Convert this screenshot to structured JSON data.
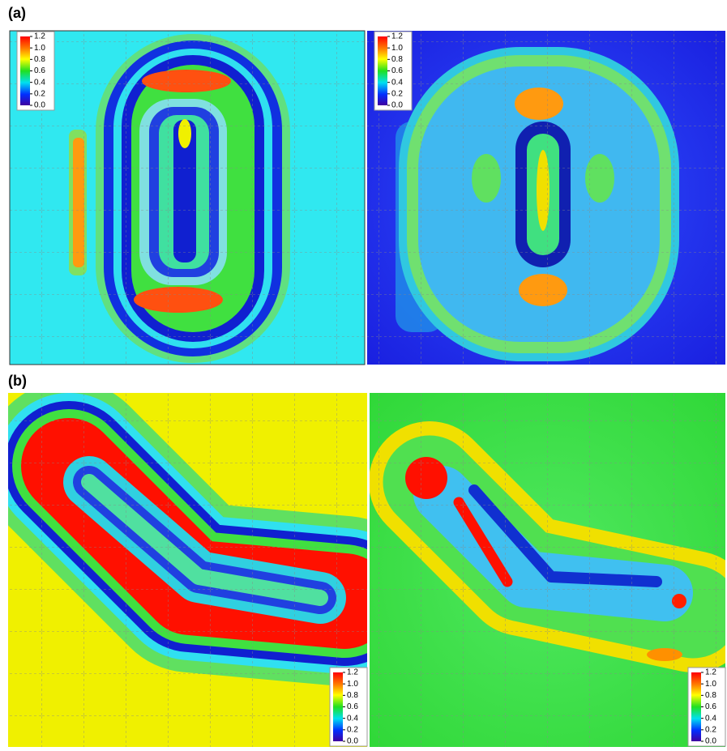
{
  "panels": [
    {
      "label": "(a)",
      "images": [
        {
          "colorbar": {
            "lim": [
              0,
              1.2
            ],
            "ticks": [
              1.2,
              {
                "value": 1,
                "label": "1.0"
              },
              0.8,
              0.6,
              0.4,
              0.2,
              {
                "value": 0,
                "label": "0.0"
              }
            ]
          }
        },
        {
          "colorbar": {
            "lim": [
              0,
              1.2
            ],
            "ticks": [
              1.2,
              {
                "value": 1,
                "label": "1.0"
              },
              0.8,
              0.6,
              0.4,
              0.2,
              {
                "value": 0,
                "label": "0.0"
              }
            ]
          }
        }
      ]
    },
    {
      "label": "(b)",
      "images": [
        {
          "colorbar": {
            "lim": [
              0,
              1.2
            ],
            "ticks": [
              1.2,
              {
                "value": 1,
                "label": "1.0"
              },
              0.8,
              0.6,
              0.4,
              0.2,
              {
                "value": 0,
                "label": "0.0"
              }
            ]
          }
        },
        {
          "colorbar": {
            "lim": [
              0,
              1.2
            ],
            "ticks": [
              1.2,
              {
                "value": 1,
                "label": "1.0"
              },
              0.8,
              0.6,
              0.4,
              0.2,
              {
                "value": 0,
                "label": "0.0"
              }
            ]
          }
        }
      ]
    }
  ]
}
